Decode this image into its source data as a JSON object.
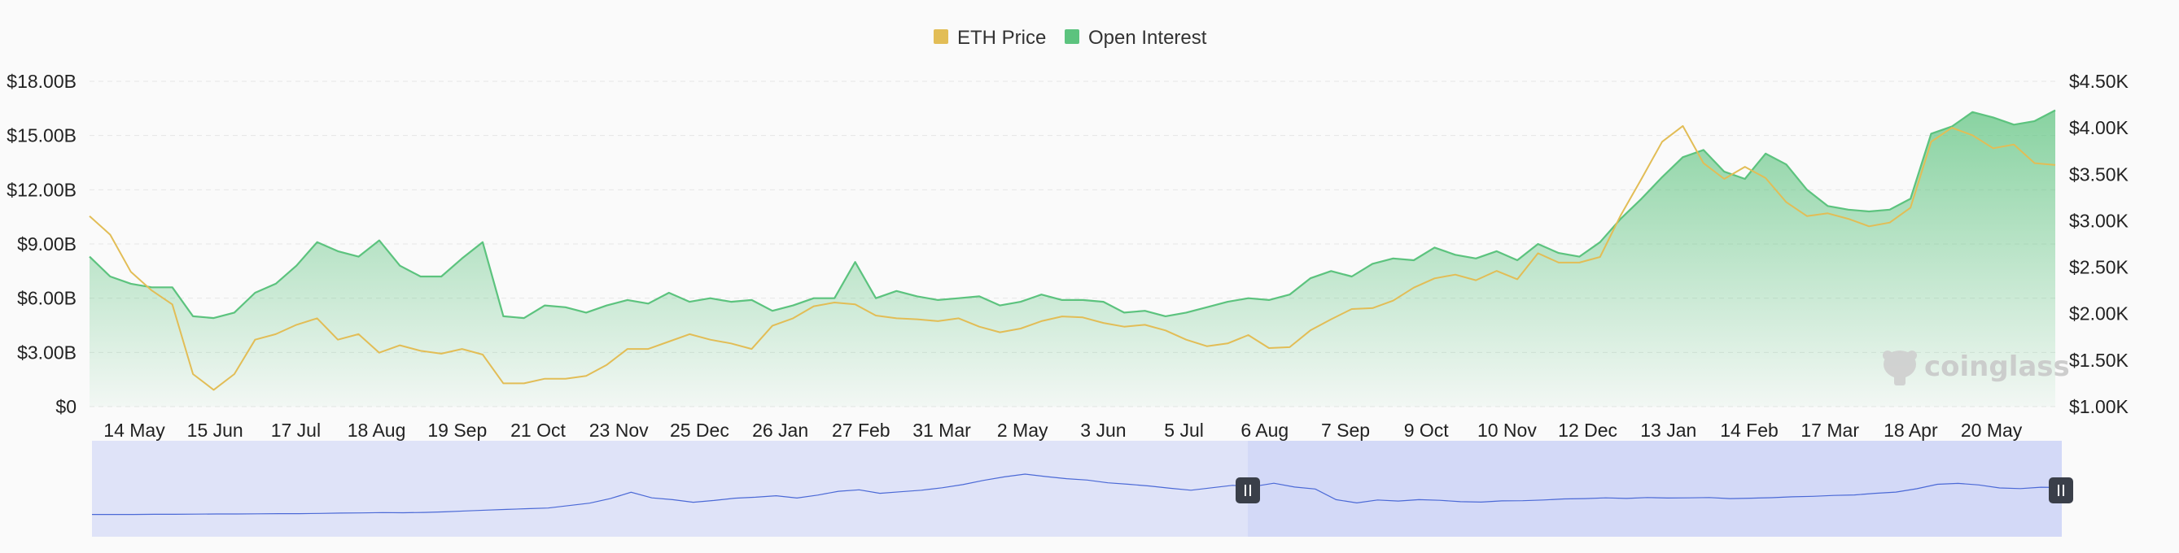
{
  "chart_data": {
    "type": "area",
    "title": "",
    "legend": {
      "placement": "top-center",
      "items": [
        {
          "label": "ETH Price",
          "color": "#e2bd56"
        },
        {
          "label": "Open Interest",
          "color": "#5cc37e"
        }
      ]
    },
    "x_tick_labels": [
      "14 May",
      "15 Jun",
      "17 Jul",
      "18 Aug",
      "19 Sep",
      "21 Oct",
      "23 Nov",
      "25 Dec",
      "26 Jan",
      "27 Feb",
      "31 Mar",
      "2 May",
      "3 Jun",
      "5 Jul",
      "6 Aug",
      "7 Sep",
      "9 Oct",
      "10 Nov",
      "12 Dec",
      "13 Jan",
      "14 Feb",
      "17 Mar",
      "18 Apr",
      "20 May"
    ],
    "y_left": {
      "label": "",
      "ticks": [
        "$0",
        "$3.00B",
        "$6.00B",
        "$9.00B",
        "$12.00B",
        "$15.00B",
        "$18.00B"
      ],
      "range": [
        0,
        18
      ],
      "unit": "B USD"
    },
    "y_right": {
      "label": "",
      "ticks": [
        "$1.00K",
        "$1.50K",
        "$2.00K",
        "$2.50K",
        "$3.00K",
        "$3.50K",
        "$4.00K",
        "$4.50K"
      ],
      "range": [
        1.0,
        4.5
      ],
      "unit": "K USD"
    },
    "grid": true,
    "series": [
      {
        "name": "Open Interest",
        "axis": "left",
        "color": "#5cc37e",
        "values": [
          8.3,
          7.2,
          6.8,
          6.6,
          6.6,
          5.0,
          4.9,
          5.2,
          6.3,
          6.8,
          7.8,
          9.1,
          8.6,
          8.3,
          9.2,
          7.8,
          7.2,
          7.2,
          8.2,
          9.1,
          5.0,
          4.9,
          5.6,
          5.5,
          5.2,
          5.6,
          5.9,
          5.7,
          6.3,
          5.8,
          6.0,
          5.8,
          5.9,
          5.3,
          5.6,
          6.0,
          6.0,
          8.0,
          6.0,
          6.4,
          6.1,
          5.9,
          6.0,
          6.1,
          5.6,
          5.8,
          6.2,
          5.9,
          5.9,
          5.8,
          5.2,
          5.3,
          5.0,
          5.2,
          5.5,
          5.8,
          6.0,
          5.9,
          6.2,
          7.1,
          7.5,
          7.2,
          7.9,
          8.2,
          8.1,
          8.8,
          8.4,
          8.2,
          8.6,
          8.1,
          9.0,
          8.5,
          8.3,
          9.1,
          10.4,
          11.5,
          12.7,
          13.8,
          14.2,
          13.0,
          12.6,
          14.0,
          13.4,
          12.0,
          11.1,
          10.9,
          10.8,
          10.9,
          11.5,
          15.1,
          15.5,
          16.3,
          16.0,
          15.6,
          15.8,
          16.4
        ]
      },
      {
        "name": "ETH Price",
        "axis": "right",
        "color": "#e2bd56",
        "values": [
          3.05,
          2.85,
          2.45,
          2.25,
          2.1,
          1.35,
          1.18,
          1.35,
          1.72,
          1.78,
          1.88,
          1.95,
          1.72,
          1.78,
          1.58,
          1.66,
          1.6,
          1.57,
          1.62,
          1.56,
          1.25,
          1.25,
          1.3,
          1.3,
          1.33,
          1.45,
          1.62,
          1.62,
          1.7,
          1.78,
          1.72,
          1.68,
          1.62,
          1.87,
          1.95,
          2.08,
          2.12,
          2.1,
          1.98,
          1.95,
          1.94,
          1.92,
          1.95,
          1.86,
          1.8,
          1.84,
          1.92,
          1.97,
          1.96,
          1.9,
          1.86,
          1.88,
          1.82,
          1.72,
          1.65,
          1.68,
          1.77,
          1.63,
          1.64,
          1.82,
          1.94,
          2.05,
          2.06,
          2.14,
          2.28,
          2.38,
          2.42,
          2.36,
          2.46,
          2.37,
          2.65,
          2.55,
          2.55,
          2.61,
          3.06,
          3.45,
          3.85,
          4.02,
          3.62,
          3.45,
          3.58,
          3.46,
          3.2,
          3.05,
          3.08,
          3.02,
          2.94,
          2.98,
          3.14,
          3.85,
          4.0,
          3.92,
          3.78,
          3.82,
          3.62,
          3.6
        ]
      }
    ]
  },
  "navigator": {
    "fill_color": "#dfe3f8",
    "line_color": "#4b69d6",
    "selected_color": "#d3d9f7",
    "handle_color": "#3a3f49",
    "overview_values": [
      2.5,
      2.5,
      2.5,
      2.6,
      2.6,
      2.7,
      2.8,
      2.8,
      2.9,
      3.0,
      3.0,
      3.1,
      3.3,
      3.4,
      3.6,
      3.5,
      3.7,
      4.0,
      4.5,
      5.0,
      5.4,
      5.8,
      6.2,
      7.6,
      9.0,
      11.6,
      15.2,
      12.0,
      11.0,
      9.5,
      10.5,
      11.8,
      12.4,
      13.2,
      11.9,
      13.6,
      15.8,
      16.6,
      14.6,
      15.5,
      16.4,
      17.8,
      19.6,
      22.0,
      24.0,
      25.6,
      24.2,
      23.0,
      22.2,
      20.6,
      19.8,
      18.8,
      17.5,
      16.4,
      17.8,
      19.2,
      18.5,
      20.4,
      18.2,
      17.1,
      11.0,
      9.1,
      10.8,
      10.2,
      11.0,
      10.6,
      9.8,
      9.6,
      10.3,
      10.4,
      10.8,
      11.4,
      11.6,
      12.0,
      11.7,
      12.2,
      11.9,
      12.0,
      12.2,
      11.6,
      11.8,
      12.1,
      12.6,
      12.9,
      13.4,
      13.7,
      14.6,
      15.3,
      17.2,
      19.8,
      20.3,
      19.4,
      17.7,
      17.3,
      18.1,
      17.9
    ],
    "selection_range": [
      0.5,
      1.0
    ]
  },
  "watermark": "coinglass"
}
